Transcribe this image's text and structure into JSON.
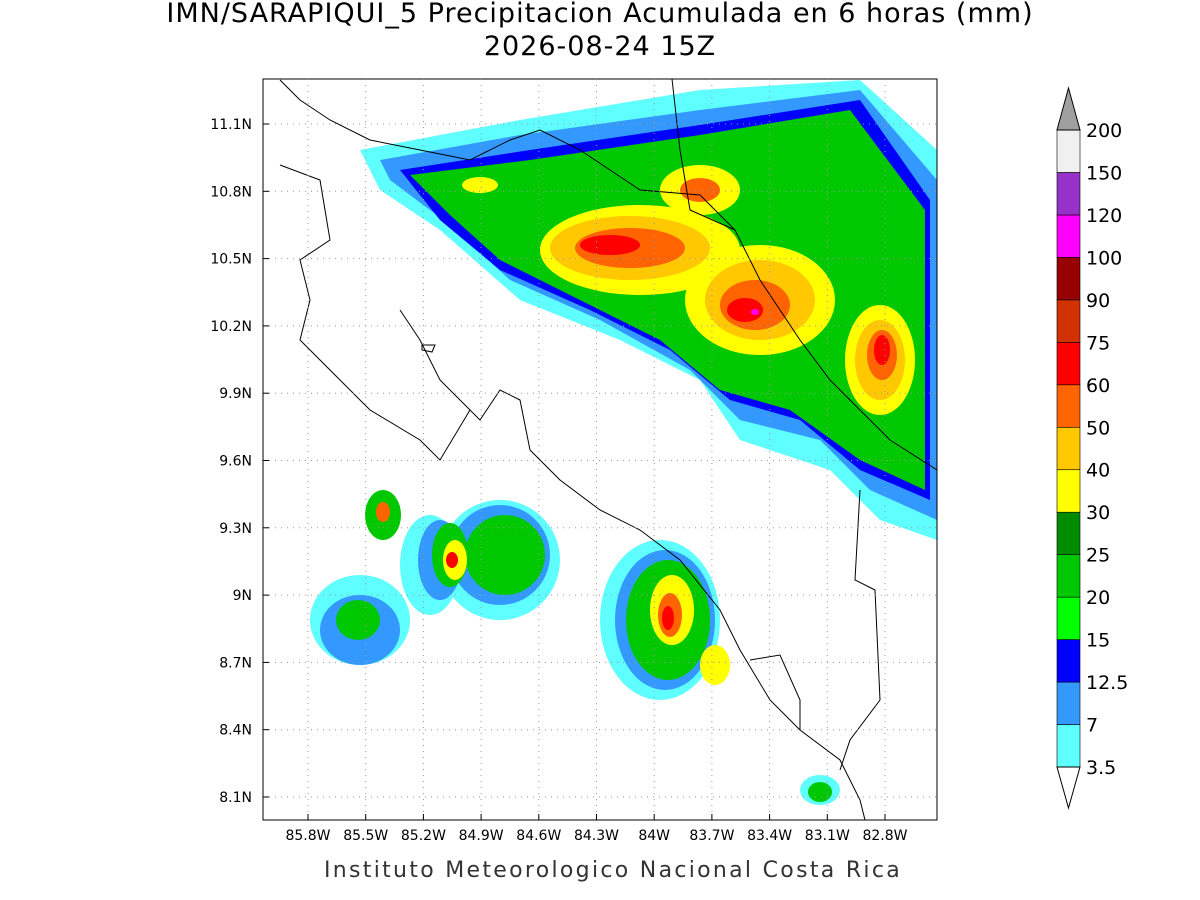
{
  "header": {
    "title": "IMN/SARAPIQUI_5 Precipitacion Acumulada en 6 horas (mm)",
    "subtitle": "2026-08-24 15Z"
  },
  "map": {
    "lon_ticks": [
      "85.8W",
      "85.5W",
      "85.2W",
      "84.9W",
      "84.6W",
      "84.3W",
      "84W",
      "83.7W",
      "83.4W",
      "83.1W",
      "82.8W"
    ],
    "lat_ticks": [
      "11.1N",
      "10.8N",
      "10.5N",
      "10.2N",
      "9.9N",
      "9.6N",
      "9.3N",
      "9N",
      "8.7N",
      "8.4N",
      "8.1N"
    ]
  },
  "colorbar": {
    "levels": [
      "3.5",
      "7",
      "12.5",
      "15",
      "20",
      "25",
      "30",
      "40",
      "50",
      "60",
      "75",
      "90",
      "100",
      "120",
      "150",
      "200"
    ],
    "colors": [
      "#5fffff",
      "#3399ff",
      "#0000ff",
      "#00ff00",
      "#00c800",
      "#008c00",
      "#ffff00",
      "#ffc800",
      "#ff6400",
      "#ff0000",
      "#d23200",
      "#960000",
      "#ff00ff",
      "#9632c8",
      "#f0f0f0"
    ],
    "over_color": "#a0a0a0",
    "under_color": "#ffffff"
  },
  "footer": "Instituto Meteorologico Nacional Costa Rica"
}
